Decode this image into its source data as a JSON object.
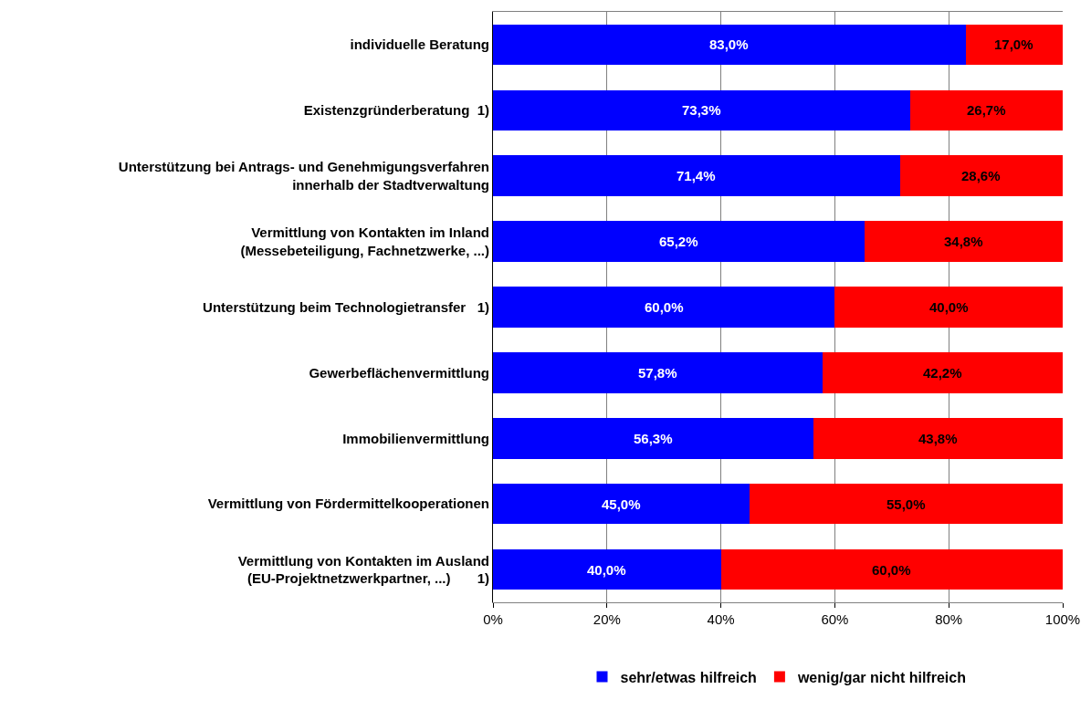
{
  "chart_data": {
    "type": "bar",
    "orientation": "horizontal",
    "stacked": true,
    "categories": [
      "individuelle Beratung",
      "Existenzgründerberatung  1)",
      "Unterstützung bei Antrags- und Genehmigungsverfahren\ninnerhalb der Stadtverwaltung",
      "Vermittlung von Kontakten im Inland\n(Messebeteiligung, Fachnetzwerke, ...)",
      "Unterstützung beim Technologietransfer   1)",
      "Gewerbeflächenvermittlung",
      "Immobilienvermittlung",
      "Vermittlung von Fördermittelkooperationen",
      "Vermittlung von Kontakten im Ausland\n(EU-Projektnetzwerkpartner, ...)       1)"
    ],
    "series": [
      {
        "name": "sehr/etwas hilfreich",
        "color": "#0000ff",
        "values": [
          83.0,
          73.3,
          71.4,
          65.2,
          60.0,
          57.8,
          56.3,
          45.0,
          40.0
        ],
        "value_labels": [
          "83,0%",
          "73,3%",
          "71,4%",
          "65,2%",
          "60,0%",
          "57,8%",
          "56,3%",
          "45,0%",
          "40,0%"
        ]
      },
      {
        "name": "wenig/gar nicht hilfreich",
        "color": "#ff0000",
        "values": [
          17.0,
          26.7,
          28.6,
          34.8,
          40.0,
          42.2,
          43.8,
          55.0,
          60.0
        ],
        "value_labels": [
          "17,0%",
          "26,7%",
          "28,6%",
          "34,8%",
          "40,0%",
          "42,2%",
          "43,8%",
          "55,0%",
          "60,0%"
        ]
      }
    ],
    "xlim": [
      0,
      100
    ],
    "xticks": [
      {
        "value": 0,
        "label": "0%"
      },
      {
        "value": 20,
        "label": "20%"
      },
      {
        "value": 40,
        "label": "40%"
      },
      {
        "value": 60,
        "label": "60%"
      },
      {
        "value": 80,
        "label": "80%"
      },
      {
        "value": 100,
        "label": "100%"
      }
    ],
    "grid": "x",
    "legend": "bottom"
  }
}
